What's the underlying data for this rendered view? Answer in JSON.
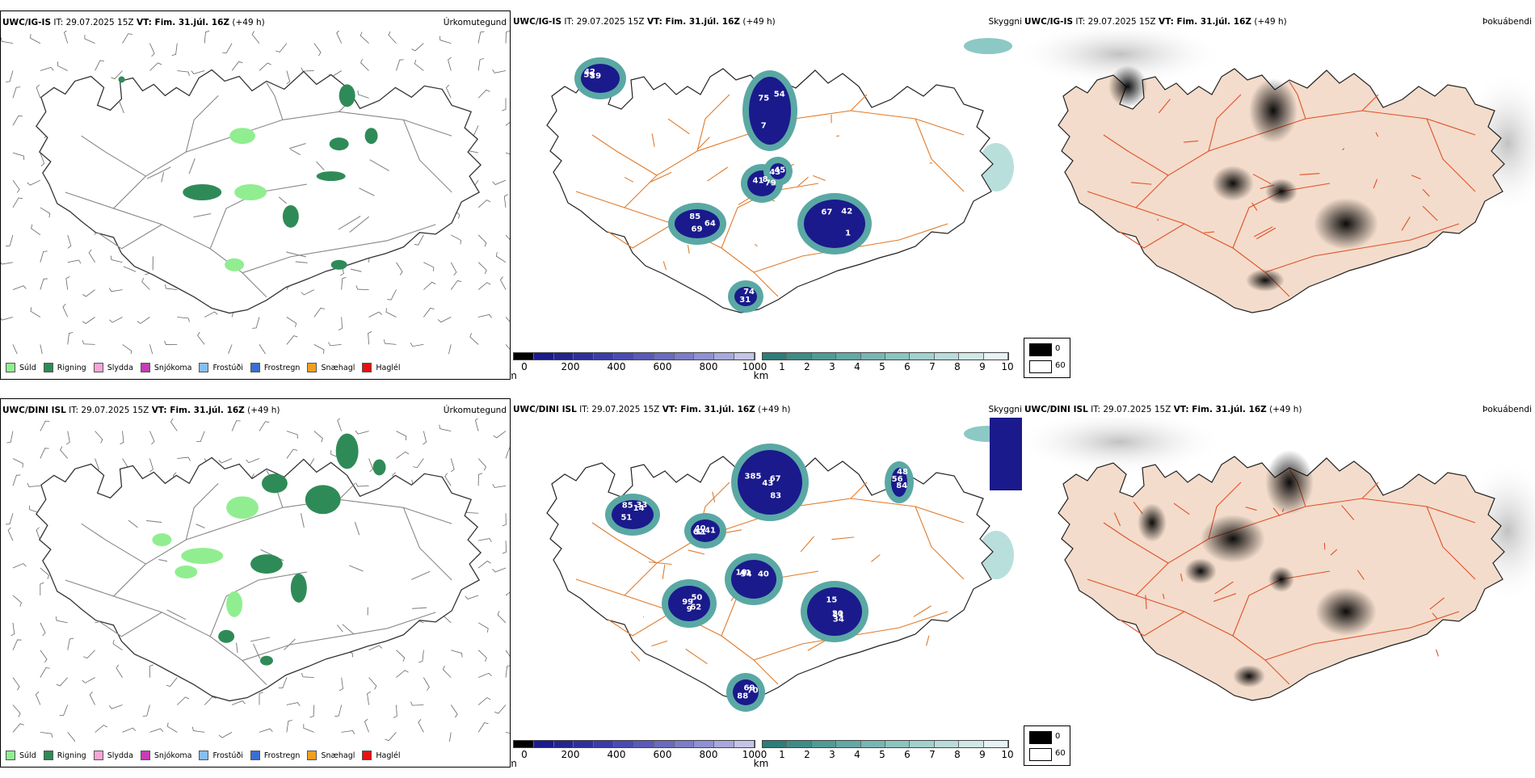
{
  "rows": [
    {
      "model": "UWC/IG-IS",
      "it": "IT: 29.07.2025 15Z",
      "vt": "VT: Fim. 31.júl. 16Z",
      "lead": "(+49 h)",
      "precip_title": "Úrkomutegund",
      "vis_title": "Skyggni",
      "cloud_title": "Þokuábendi",
      "vis_labels": [
        "42",
        "75",
        "8",
        "69",
        "42",
        "31",
        "45",
        "39",
        "54",
        "79",
        "64",
        "67",
        "74",
        "43",
        "59",
        "7",
        "41",
        "85",
        "1"
      ]
    },
    {
      "model": "UWC/DINI ISL",
      "it": "IT: 29.07.2025 15Z",
      "vt": "VT: Fim. 31.júl. 16Z",
      "lead": "(+49 h)",
      "precip_title": "Úrkomutegund",
      "vis_title": "Skyggni",
      "cloud_title": "Þokuábendi",
      "vis_labels": [
        "83",
        "85",
        "51",
        "41",
        "50",
        "34",
        "70",
        "56",
        "43",
        "51",
        "62",
        "10",
        "99",
        "20",
        "69",
        "48",
        "385",
        "33",
        "41",
        "40",
        "62",
        "51",
        "88",
        "84",
        "67",
        "14",
        "40",
        "34",
        "9",
        "15"
      ]
    }
  ],
  "precip_legend": [
    {
      "label": "Súld",
      "color": "#90ee90"
    },
    {
      "label": "Rigning",
      "color": "#2e8b57"
    },
    {
      "label": "Slydda",
      "color": "#f4a6d7"
    },
    {
      "label": "Snjókoma",
      "color": "#c83cb4"
    },
    {
      "label": "Frostúði",
      "color": "#87bdf5"
    },
    {
      "label": "Frostregn",
      "color": "#3a6fd0"
    },
    {
      "label": "Snæhagl",
      "color": "#f0a020"
    },
    {
      "label": "Haglél",
      "color": "#e81010"
    }
  ],
  "height_scale": {
    "unit": "m",
    "ticks": [
      "0",
      "200",
      "400",
      "600",
      "800",
      "1000"
    ]
  },
  "vis_scale": {
    "unit": "km",
    "ticks": [
      "1",
      "2",
      "3",
      "4",
      "5",
      "6",
      "7",
      "8",
      "9",
      "10"
    ]
  },
  "cloud_legend": {
    "min": "0",
    "max": "60"
  },
  "colors": {
    "land_cloud": "#f3dccb",
    "roads": "#e07a2a",
    "precip_rain": "#2e8b57",
    "precip_drizzle": "#90ee90",
    "vis_dark": "#1a1a8c",
    "vis_teal": "#5aa8a4"
  }
}
